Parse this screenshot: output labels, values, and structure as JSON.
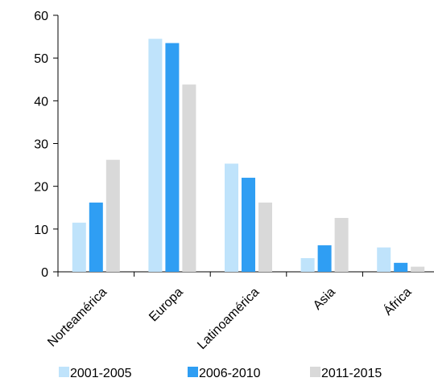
{
  "chart_data": {
    "type": "bar",
    "categories": [
      "Norteamérica",
      "Europa",
      "Latinoamérica",
      "Asia",
      "África"
    ],
    "series": [
      {
        "name": "2001-2005",
        "color": "#bfe3fb",
        "values": [
          11.5,
          54.5,
          25.3,
          3.2,
          5.7
        ]
      },
      {
        "name": "2006-2010",
        "color": "#2f9ef3",
        "values": [
          16.2,
          53.5,
          22.0,
          6.2,
          2.1
        ]
      },
      {
        "name": "2011-2015",
        "color": "#d9d9d9",
        "values": [
          26.2,
          43.8,
          16.2,
          12.6,
          1.2
        ]
      }
    ],
    "yticks": [
      "0",
      "10",
      "20",
      "30",
      "40",
      "50",
      "60"
    ],
    "ylim": [
      0,
      60
    ],
    "title": "",
    "xlabel": "",
    "ylabel": "",
    "grid": false,
    "legend_position": "bottom"
  }
}
